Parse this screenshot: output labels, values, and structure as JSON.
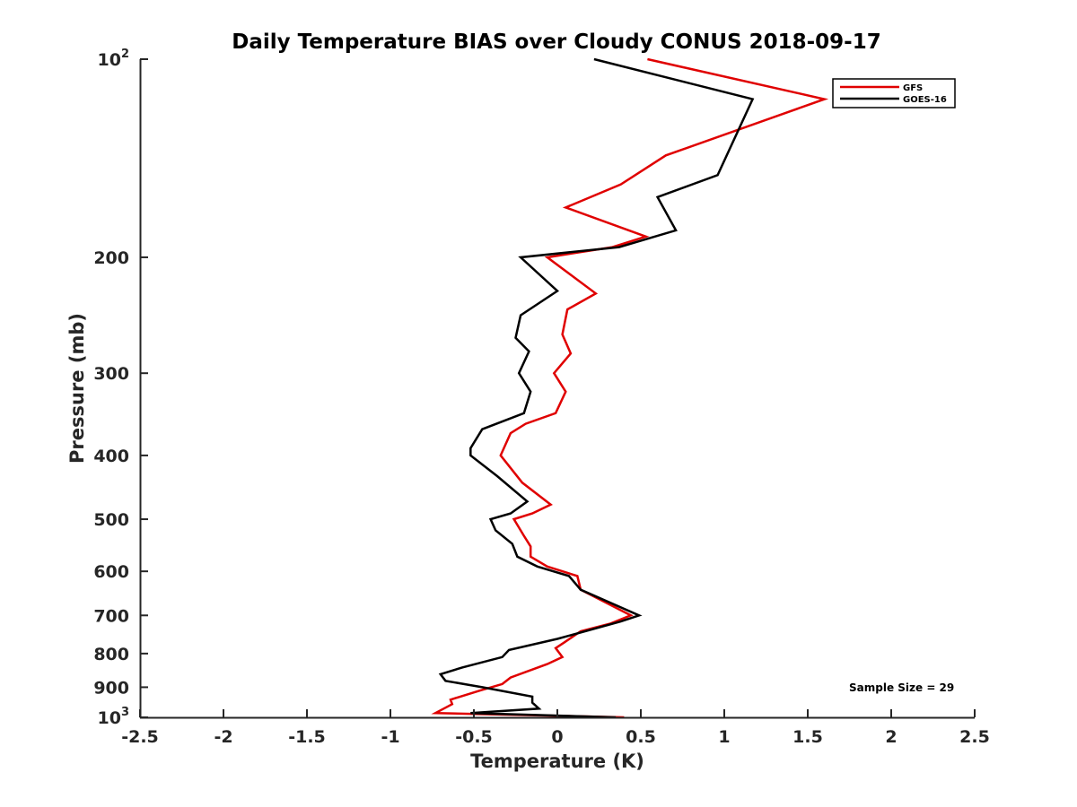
{
  "chart_data": {
    "type": "line",
    "title": "Daily Temperature BIAS over Cloudy CONUS 2018-09-17",
    "xlabel": "Temperature (K)",
    "ylabel": "Pressure (mb)",
    "xlim": [
      -2.5,
      2.5
    ],
    "ylim": [
      100,
      1000
    ],
    "y_scale": "log",
    "y_reversed": true,
    "grid": false,
    "legend_position": "top-right",
    "x_ticks": [
      {
        "value": -2.5,
        "label": "-2.5"
      },
      {
        "value": -2,
        "label": "-2"
      },
      {
        "value": -1.5,
        "label": "-1.5"
      },
      {
        "value": -1,
        "label": "-1"
      },
      {
        "value": -0.5,
        "label": "-0.5"
      },
      {
        "value": 0,
        "label": "0"
      },
      {
        "value": 0.5,
        "label": "0.5"
      },
      {
        "value": 1,
        "label": "1"
      },
      {
        "value": 1.5,
        "label": "1.5"
      },
      {
        "value": 2,
        "label": "2"
      },
      {
        "value": 2.5,
        "label": "2.5"
      }
    ],
    "y_ticks": [
      {
        "value": 100,
        "label": "10",
        "sup": "2"
      },
      {
        "value": 200,
        "label": "200",
        "sup": ""
      },
      {
        "value": 300,
        "label": "300",
        "sup": ""
      },
      {
        "value": 400,
        "label": "400",
        "sup": ""
      },
      {
        "value": 500,
        "label": "500",
        "sup": ""
      },
      {
        "value": 600,
        "label": "600",
        "sup": ""
      },
      {
        "value": 700,
        "label": "700",
        "sup": ""
      },
      {
        "value": 800,
        "label": "800",
        "sup": ""
      },
      {
        "value": 900,
        "label": "900",
        "sup": ""
      },
      {
        "value": 1000,
        "label": "10",
        "sup": "3"
      }
    ],
    "series": [
      {
        "name": "GFS",
        "color": "#e00000",
        "points": [
          [
            0.54,
            100
          ],
          [
            1.6,
            115
          ],
          [
            0.65,
            140
          ],
          [
            0.38,
            155
          ],
          [
            0.05,
            168
          ],
          [
            0.53,
            186
          ],
          [
            0.33,
            193
          ],
          [
            -0.06,
            200
          ],
          [
            0.23,
            227
          ],
          [
            0.06,
            240
          ],
          [
            0.03,
            262
          ],
          [
            0.08,
            280
          ],
          [
            -0.02,
            300
          ],
          [
            0.05,
            320
          ],
          [
            -0.01,
            345
          ],
          [
            -0.19,
            358
          ],
          [
            -0.28,
            370
          ],
          [
            -0.34,
            400
          ],
          [
            -0.21,
            440
          ],
          [
            -0.04,
            475
          ],
          [
            -0.15,
            490
          ],
          [
            -0.26,
            500
          ],
          [
            -0.2,
            530
          ],
          [
            -0.16,
            550
          ],
          [
            -0.16,
            570
          ],
          [
            -0.06,
            590
          ],
          [
            0.12,
            610
          ],
          [
            0.14,
            640
          ],
          [
            0.44,
            700
          ],
          [
            0.32,
            720
          ],
          [
            0.14,
            740
          ],
          [
            0.04,
            770
          ],
          [
            -0.01,
            785
          ],
          [
            0.03,
            810
          ],
          [
            -0.06,
            830
          ],
          [
            -0.28,
            870
          ],
          [
            -0.33,
            890
          ],
          [
            -0.46,
            910
          ],
          [
            -0.64,
            940
          ],
          [
            -0.63,
            955
          ],
          [
            -0.73,
            985
          ],
          [
            0.4,
            1000
          ]
        ]
      },
      {
        "name": "GOES-16",
        "color": "#000000",
        "points": [
          [
            0.22,
            100
          ],
          [
            1.17,
            115
          ],
          [
            0.96,
            150
          ],
          [
            0.6,
            162
          ],
          [
            0.71,
            182
          ],
          [
            0.37,
            193
          ],
          [
            -0.22,
            200
          ],
          [
            0.0,
            225
          ],
          [
            -0.22,
            245
          ],
          [
            -0.25,
            265
          ],
          [
            -0.17,
            278
          ],
          [
            -0.23,
            300
          ],
          [
            -0.16,
            320
          ],
          [
            -0.2,
            345
          ],
          [
            -0.45,
            365
          ],
          [
            -0.52,
            390
          ],
          [
            -0.52,
            400
          ],
          [
            -0.36,
            430
          ],
          [
            -0.18,
            470
          ],
          [
            -0.28,
            490
          ],
          [
            -0.4,
            500
          ],
          [
            -0.37,
            520
          ],
          [
            -0.27,
            545
          ],
          [
            -0.24,
            570
          ],
          [
            -0.12,
            590
          ],
          [
            0.07,
            610
          ],
          [
            0.14,
            640
          ],
          [
            0.49,
            700
          ],
          [
            0.38,
            715
          ],
          [
            0.0,
            760
          ],
          [
            -0.29,
            790
          ],
          [
            -0.33,
            810
          ],
          [
            -0.57,
            840
          ],
          [
            -0.7,
            860
          ],
          [
            -0.67,
            880
          ],
          [
            -0.45,
            900
          ],
          [
            -0.15,
            930
          ],
          [
            -0.15,
            950
          ],
          [
            -0.11,
            970
          ],
          [
            -0.52,
            985
          ],
          [
            0.35,
            1000
          ]
        ]
      }
    ],
    "annotation": "Sample Size = 29"
  }
}
